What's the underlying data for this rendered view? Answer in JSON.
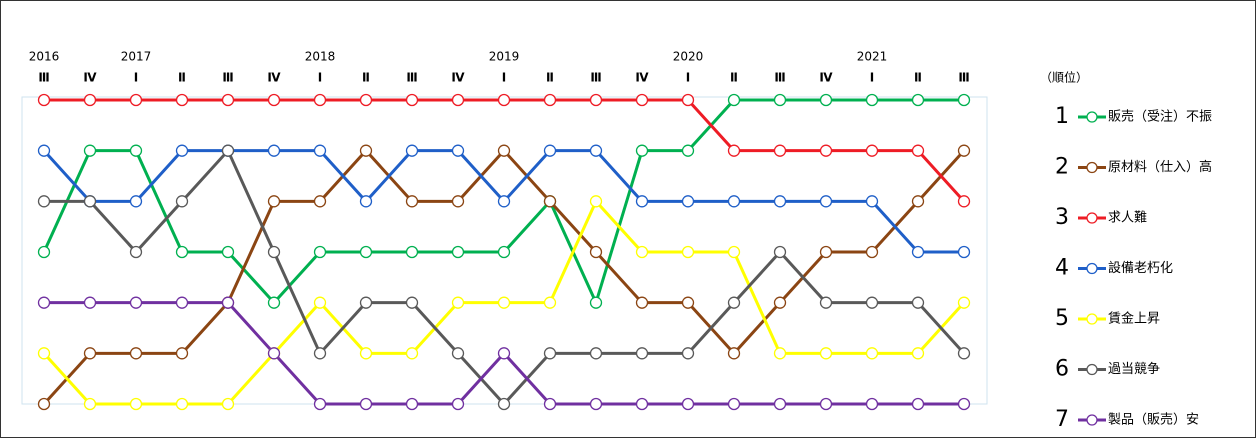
{
  "chart_data": {
    "type": "bump",
    "y_axis_label": "（順位）",
    "categories": [
      "Ⅲ",
      "Ⅳ",
      "Ⅰ",
      "Ⅱ",
      "Ⅲ",
      "Ⅳ",
      "Ⅰ",
      "Ⅱ",
      "Ⅲ",
      "Ⅳ",
      "Ⅰ",
      "Ⅱ",
      "Ⅲ",
      "Ⅳ",
      "Ⅰ",
      "Ⅱ",
      "Ⅲ",
      "Ⅳ",
      "Ⅰ",
      "Ⅱ",
      "Ⅲ"
    ],
    "year_labels": [
      "2016",
      null,
      "2017",
      null,
      null,
      null,
      "2018",
      null,
      null,
      null,
      "2019",
      null,
      null,
      null,
      "2020",
      null,
      null,
      null,
      "2021",
      null,
      null
    ],
    "ylim": [
      1,
      7
    ],
    "y_reversed": true,
    "series": [
      {
        "rank": 1,
        "name": "販売（受注）不振",
        "color": "#00b050",
        "values": [
          4,
          2,
          2,
          4,
          4,
          5,
          4,
          4,
          4,
          4,
          4,
          3,
          5,
          2,
          2,
          1,
          1,
          1,
          1,
          1,
          1
        ]
      },
      {
        "rank": 2,
        "name": "原材料（仕入）高",
        "color": "#8b4513",
        "values": [
          7,
          6,
          6,
          6,
          5,
          3,
          3,
          2,
          3,
          3,
          2,
          3,
          4,
          5,
          5,
          6,
          5,
          4,
          4,
          3,
          2
        ]
      },
      {
        "rank": 3,
        "name": "求人難",
        "color": "#ee1c25",
        "values": [
          1,
          1,
          1,
          1,
          1,
          1,
          1,
          1,
          1,
          1,
          1,
          1,
          1,
          1,
          1,
          2,
          2,
          2,
          2,
          2,
          3
        ]
      },
      {
        "rank": 4,
        "name": "設備老朽化",
        "color": "#1f5fc8",
        "values": [
          2,
          3,
          3,
          2,
          2,
          2,
          2,
          3,
          2,
          2,
          3,
          2,
          2,
          3,
          3,
          3,
          3,
          3,
          3,
          4,
          4
        ]
      },
      {
        "rank": 5,
        "name": "賃金上昇",
        "color": "#ffff00",
        "values": [
          6,
          7,
          7,
          7,
          7,
          6,
          5,
          6,
          6,
          5,
          5,
          5,
          3,
          4,
          4,
          4,
          6,
          6,
          6,
          6,
          5
        ]
      },
      {
        "rank": 6,
        "name": "過当競争",
        "color": "#595959",
        "values": [
          3,
          3,
          4,
          3,
          2,
          4,
          6,
          5,
          5,
          6,
          7,
          6,
          6,
          6,
          6,
          5,
          4,
          5,
          5,
          5,
          6
        ]
      },
      {
        "rank": 7,
        "name": "製品（販売）安",
        "color": "#7030a0",
        "values": [
          5,
          5,
          5,
          5,
          5,
          6,
          7,
          7,
          7,
          7,
          6,
          7,
          7,
          7,
          7,
          7,
          7,
          7,
          7,
          7,
          7
        ]
      }
    ]
  }
}
